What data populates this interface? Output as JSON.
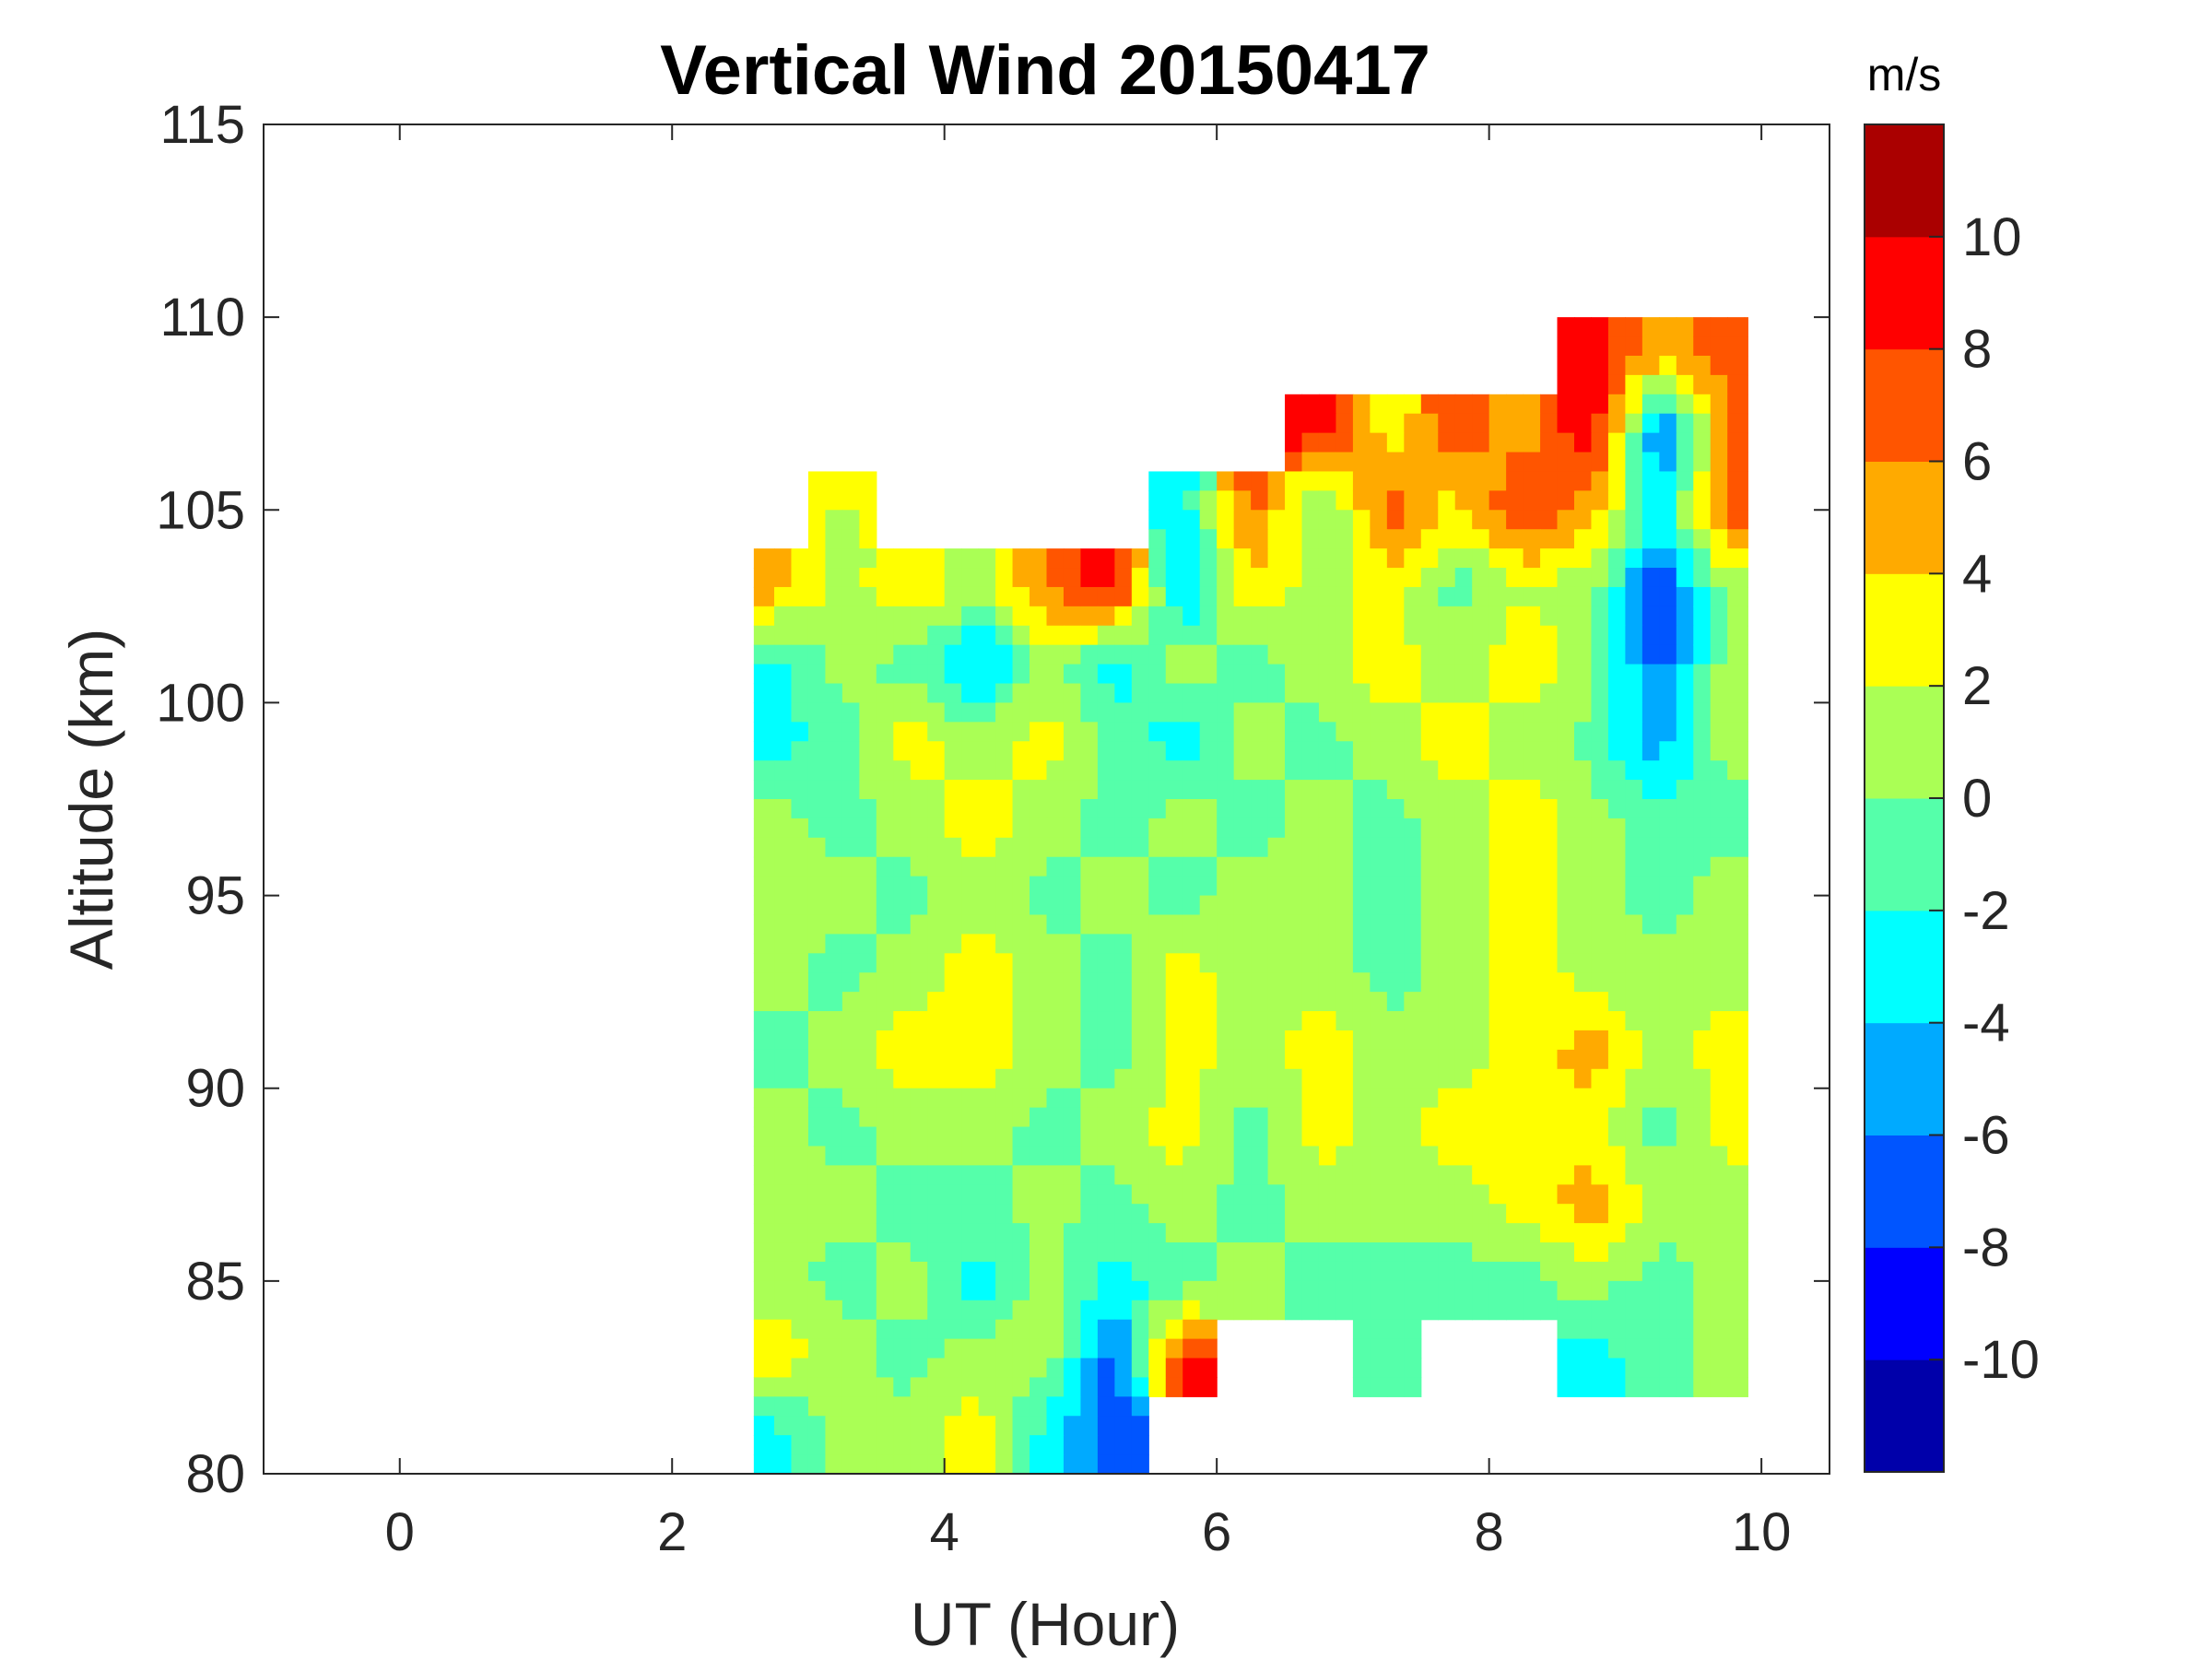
{
  "chart_data": {
    "type": "heatmap",
    "title": "Vertical Wind 20150417",
    "xlabel": "UT (Hour)",
    "ylabel": "Altitude (km)",
    "xlim": [
      -1,
      10.5
    ],
    "ylim": [
      80,
      115
    ],
    "xticks": [
      0,
      2,
      4,
      6,
      8,
      10
    ],
    "yticks": [
      80,
      85,
      90,
      95,
      100,
      105,
      110,
      115
    ],
    "colorbar": {
      "label": "m/s",
      "range": [
        -12,
        12
      ],
      "levels": [
        -12,
        -10,
        -8,
        -6,
        -4,
        -2,
        0,
        2,
        4,
        6,
        8,
        10,
        12
      ],
      "ticks": [
        -10,
        -8,
        -6,
        -4,
        -2,
        0,
        2,
        4,
        6,
        8,
        10
      ],
      "colors": [
        "#0000AA",
        "#0000FF",
        "#0055FF",
        "#00AAFF",
        "#00FFFF",
        "#55FFAA",
        "#AAFF55",
        "#FFFF00",
        "#FFAA00",
        "#FF5500",
        "#FF0000",
        "#AA0000"
      ]
    },
    "x": [
      2.75,
      3.25,
      3.75,
      4.25,
      4.75,
      5.25,
      5.75,
      6.25,
      6.75,
      7.25,
      7.75,
      8.25,
      8.75,
      9.25,
      9.75
    ],
    "y": [
      109,
      107,
      105,
      103,
      101,
      99,
      97,
      95,
      93,
      91,
      89,
      87,
      85,
      83,
      81
    ],
    "values": [
      [
        null,
        null,
        null,
        null,
        null,
        null,
        null,
        null,
        null,
        null,
        null,
        null,
        9,
        5,
        7
      ],
      [
        null,
        null,
        null,
        null,
        null,
        null,
        null,
        null,
        9,
        3,
        7,
        5,
        10,
        -7,
        6
      ],
      [
        null,
        2,
        null,
        null,
        null,
        null,
        -3,
        7,
        -1,
        7,
        3,
        8,
        5,
        -3,
        7
      ],
      [
        5,
        1,
        4,
        1,
        6,
        9,
        -5,
        4,
        1,
        3,
        -1,
        2,
        1,
        -8,
        1
      ],
      [
        -3,
        1,
        -1,
        -5,
        1,
        -3,
        1,
        -1,
        1,
        3,
        1,
        3,
        1,
        -7,
        1
      ],
      [
        -3,
        -1,
        3,
        1,
        3,
        -1,
        -3,
        1,
        -1,
        1,
        3,
        1,
        -1,
        -5,
        1
      ],
      [
        1,
        -1,
        1,
        3,
        1,
        -1,
        1,
        -1,
        1,
        -1,
        1,
        3,
        1,
        -1,
        -1
      ],
      [
        1,
        1,
        -1,
        1,
        -1,
        1,
        -1,
        1,
        1,
        -1,
        1,
        3,
        1,
        -1,
        1
      ],
      [
        1,
        -1,
        1,
        3,
        1,
        -1,
        3,
        1,
        1,
        -1,
        1,
        3,
        1,
        1,
        1
      ],
      [
        -1,
        1,
        3,
        3,
        1,
        -1,
        3,
        1,
        3,
        1,
        1,
        3,
        5,
        1,
        3
      ],
      [
        1,
        -1,
        1,
        1,
        -1,
        1,
        3,
        -1,
        3,
        1,
        3,
        3,
        3,
        -1,
        3
      ],
      [
        1,
        1,
        -1,
        -1,
        1,
        -1,
        1,
        -1,
        1,
        1,
        1,
        3,
        5,
        1,
        1
      ],
      [
        1,
        -1,
        1,
        -3,
        1,
        -3,
        -1,
        1,
        -1,
        -1,
        -1,
        -1,
        1,
        -1,
        1
      ],
      [
        3,
        1,
        -1,
        1,
        1,
        -7,
        9,
        null,
        null,
        -1,
        null,
        null,
        -3,
        -1,
        1
      ],
      [
        -3,
        1,
        1,
        3,
        -3,
        -7,
        null,
        null,
        null,
        null,
        null,
        null,
        null,
        null,
        null
      ]
    ]
  }
}
